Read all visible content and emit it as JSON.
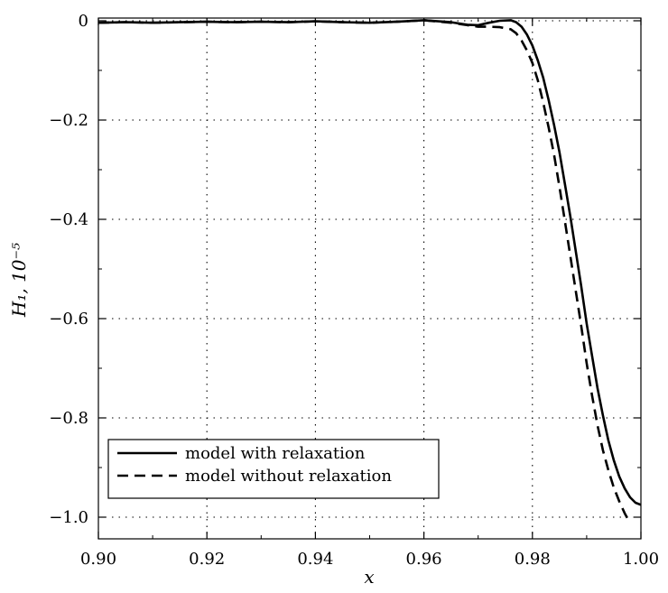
{
  "chart_data": {
    "type": "line",
    "title": "",
    "xlabel": "x",
    "ylabel": "H₁, 10⁻⁵",
    "xlim": [
      0.9,
      1.0
    ],
    "ylim": [
      -1.04,
      0.005
    ],
    "grid": true,
    "legend_position": "bottom-left",
    "x_ticks": [
      "0.90",
      "0.92",
      "0.94",
      "0.96",
      "0.98",
      "1.00"
    ],
    "y_ticks": [
      "0",
      "−0.2",
      "−0.4",
      "−0.6",
      "−0.8",
      "−1.0"
    ],
    "series": [
      {
        "name": "model with relaxation",
        "style": "solid",
        "x": [
          0.9,
          0.905,
          0.91,
          0.915,
          0.92,
          0.925,
          0.93,
          0.935,
          0.94,
          0.945,
          0.95,
          0.955,
          0.96,
          0.965,
          0.968,
          0.97,
          0.972,
          0.974,
          0.976,
          0.977,
          0.978,
          0.979,
          0.98,
          0.981,
          0.982,
          0.983,
          0.984,
          0.985,
          0.986,
          0.987,
          0.988,
          0.989,
          0.99,
          0.991,
          0.992,
          0.993,
          0.994,
          0.995,
          0.996,
          0.997,
          0.998,
          0.999,
          1.0
        ],
        "y": [
          -0.004,
          -0.003,
          -0.004,
          -0.003,
          -0.002,
          -0.003,
          -0.002,
          -0.003,
          -0.001,
          -0.003,
          -0.004,
          -0.002,
          0.001,
          -0.003,
          -0.008,
          -0.009,
          -0.004,
          0.0,
          0.001,
          -0.003,
          -0.012,
          -0.028,
          -0.05,
          -0.08,
          -0.115,
          -0.16,
          -0.21,
          -0.265,
          -0.33,
          -0.395,
          -0.465,
          -0.535,
          -0.61,
          -0.675,
          -0.74,
          -0.795,
          -0.845,
          -0.885,
          -0.918,
          -0.942,
          -0.96,
          -0.971,
          -0.975
        ]
      },
      {
        "name": "model without relaxation",
        "style": "dashed",
        "x": [
          0.9,
          0.905,
          0.91,
          0.915,
          0.92,
          0.925,
          0.93,
          0.935,
          0.94,
          0.945,
          0.95,
          0.955,
          0.96,
          0.965,
          0.968,
          0.97,
          0.972,
          0.974,
          0.976,
          0.977,
          0.978,
          0.979,
          0.98,
          0.981,
          0.982,
          0.983,
          0.984,
          0.985,
          0.986,
          0.987,
          0.988,
          0.989,
          0.99,
          0.991,
          0.992,
          0.993,
          0.994,
          0.995,
          0.996,
          0.997,
          0.998
        ],
        "y": [
          -0.004,
          -0.003,
          -0.004,
          -0.003,
          -0.002,
          -0.003,
          -0.002,
          -0.003,
          -0.001,
          -0.003,
          -0.004,
          -0.002,
          0.001,
          -0.004,
          -0.009,
          -0.012,
          -0.012,
          -0.013,
          -0.017,
          -0.025,
          -0.04,
          -0.06,
          -0.085,
          -0.12,
          -0.165,
          -0.215,
          -0.27,
          -0.335,
          -0.405,
          -0.475,
          -0.545,
          -0.615,
          -0.69,
          -0.755,
          -0.815,
          -0.865,
          -0.905,
          -0.94,
          -0.968,
          -0.992,
          -1.012
        ]
      }
    ]
  }
}
